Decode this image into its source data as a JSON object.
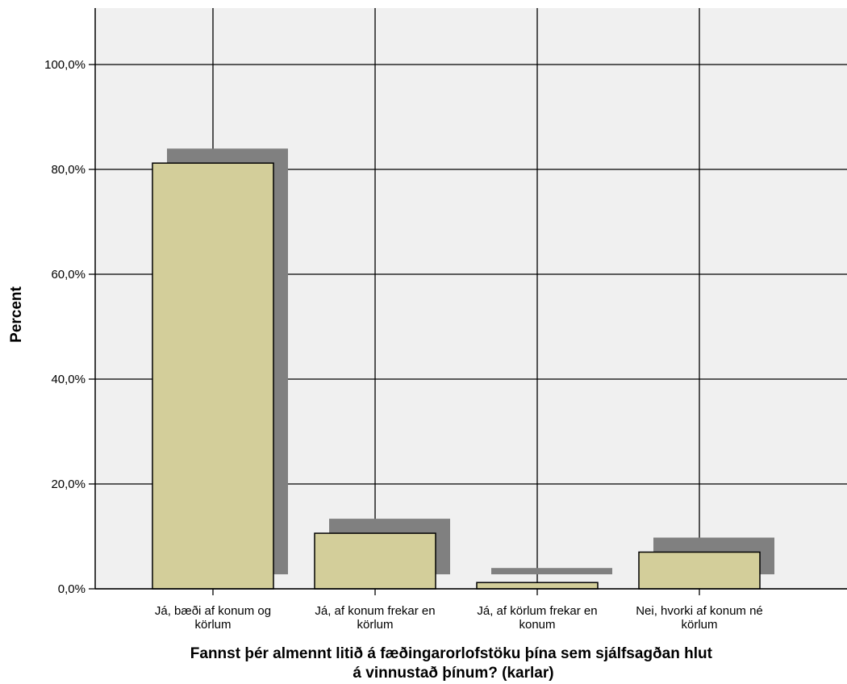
{
  "chart_data": {
    "type": "bar",
    "categories": [
      [
        "Já, bæði af konum og",
        "körlum"
      ],
      [
        "Já, af konum frekar en",
        "körlum"
      ],
      [
        "Já, af körlum frekar en",
        "konum"
      ],
      [
        "Nei, hvorki af konum né",
        "körlum"
      ]
    ],
    "values": [
      81.2,
      10.6,
      1.2,
      7.0
    ],
    "xlabel": [
      "Fannst þér almennt litið á fæðingarorlofstöku þína sem sjálfsagðan hlut",
      "á vinnustað þínum? (karlar)"
    ],
    "ylabel": "Percent",
    "ylim": [
      0,
      100
    ],
    "yticks": [
      0,
      20,
      40,
      60,
      80,
      100
    ],
    "ytick_labels": [
      "0,0%",
      "20,0%",
      "40,0%",
      "60,0%",
      "80,0%",
      "100,0%"
    ],
    "grid": true,
    "colors": {
      "plot_background": "#f0f0f0",
      "bar_fill": "#d3ce9a",
      "bar_shadow": "#808080",
      "grid": "#000000"
    }
  }
}
